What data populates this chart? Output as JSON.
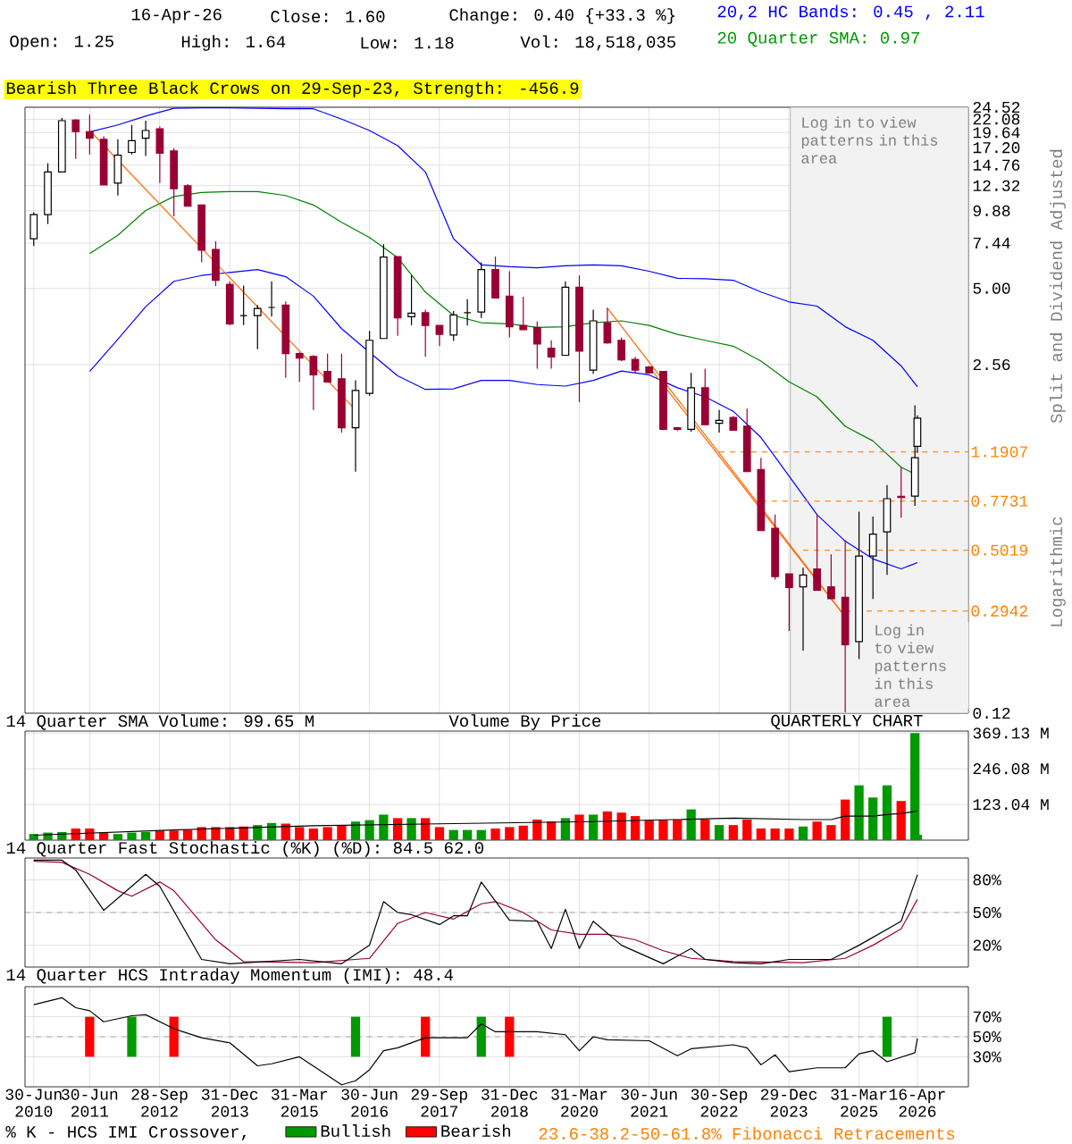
{
  "chart_data": [
    {
      "type": "candlestick",
      "title": "Bearish Three Black Crows on 29-Sep-23, Strength: -456.9",
      "ylabel": "Split and Dividend Adjusted",
      "log": true,
      "grid": true,
      "tick_labels": "y",
      "xlim": [
        "2010-05-04",
        "2027-03-15"
      ],
      "ylim": [
        0.12,
        24.52
      ],
      "xticks": [
        {
          "value": "2010-06-30",
          "label": null
        },
        {
          "value": "2011-06-30",
          "label": null
        },
        {
          "value": "2012-09-28",
          "label": null
        },
        {
          "value": "2013-12-31",
          "label": null
        },
        {
          "value": "2015-03-31",
          "label": null
        },
        {
          "value": "2016-06-30",
          "label": null
        },
        {
          "value": "2017-09-29",
          "label": null
        },
        {
          "value": "2018-12-31",
          "label": null
        },
        {
          "value": "2020-03-31",
          "label": null
        },
        {
          "value": "2021-06-30",
          "label": null
        },
        {
          "value": "2022-09-30",
          "label": null
        },
        {
          "value": "2023-12-29",
          "label": null
        },
        {
          "value": "2025-03-31",
          "label": null
        },
        {
          "value": "2026-04-16",
          "label": null
        }
      ],
      "yticks": [
        {
          "value": 24.52,
          "label": "24.52"
        },
        {
          "value": 22.08,
          "label": "22.08"
        },
        {
          "value": 19.64,
          "label": "19.64"
        },
        {
          "value": 17.2,
          "label": "17.20"
        },
        {
          "value": 14.76,
          "label": "14.76"
        },
        {
          "value": 12.32,
          "label": "12.32"
        },
        {
          "value": 9.88,
          "label": "9.88"
        },
        {
          "value": 7.44,
          "label": "7.44"
        },
        {
          "value": 5.0,
          "label": "5.00"
        },
        {
          "value": 2.56,
          "label": "2.56"
        },
        {
          "value": 0.12,
          "label": "0.12"
        }
      ],
      "x": [
        "2010-06-30",
        "2010-09-30",
        "2010-12-31",
        "2011-03-31",
        "2011-06-30",
        "2011-09-30",
        "2011-12-31",
        "2012-03-31",
        "2012-06-30",
        "2012-09-30",
        "2012-12-31",
        "2013-03-31",
        "2013-06-30",
        "2013-09-30",
        "2013-12-31",
        "2014-03-31",
        "2014-06-30",
        "2014-09-30",
        "2014-12-31",
        "2015-03-31",
        "2015-06-30",
        "2015-09-30",
        "2015-12-31",
        "2016-03-31",
        "2016-06-30",
        "2016-09-30",
        "2016-12-31",
        "2017-03-31",
        "2017-06-30",
        "2017-09-30",
        "2017-12-31",
        "2018-03-31",
        "2018-06-30",
        "2018-09-30",
        "2018-12-31",
        "2019-03-31",
        "2019-06-30",
        "2019-09-30",
        "2019-12-31",
        "2020-03-31",
        "2020-06-30",
        "2020-09-30",
        "2020-12-31",
        "2021-03-31",
        "2021-06-30",
        "2021-09-30",
        "2021-12-31",
        "2022-03-31",
        "2022-06-30",
        "2022-09-30",
        "2022-12-31",
        "2023-03-31",
        "2023-06-30",
        "2023-09-30",
        "2023-12-31",
        "2024-03-31",
        "2024-06-30",
        "2024-09-30",
        "2024-12-31",
        "2025-03-31",
        "2025-06-30",
        "2025-09-30",
        "2025-12-31",
        "2026-03-31",
        "2026-04-16"
      ],
      "ohlc": [
        [
          7.73,
          9.76,
          7.26,
          9.56
        ],
        [
          9.56,
          15.0,
          8.8,
          13.9
        ],
        [
          13.9,
          22.3,
          13.9,
          21.8
        ],
        [
          21.9,
          22.1,
          15.6,
          19.8
        ],
        [
          19.8,
          23.0,
          16.2,
          18.7
        ],
        [
          18.5,
          19.0,
          12.4,
          12.4
        ],
        [
          12.6,
          18.5,
          11.3,
          16.1
        ],
        [
          16.5,
          21.0,
          16.2,
          18.3
        ],
        [
          18.7,
          21.8,
          16.0,
          20.0
        ],
        [
          20.3,
          20.7,
          12.6,
          16.4
        ],
        [
          16.7,
          17.1,
          9.41,
          12.0
        ],
        [
          12.3,
          12.5,
          10.3,
          10.3
        ],
        [
          10.4,
          10.4,
          6.28,
          7.0
        ],
        [
          7.04,
          7.57,
          5.1,
          5.37
        ],
        [
          5.18,
          5.32,
          3.62,
          3.66
        ],
        [
          3.94,
          5.13,
          3.62,
          3.94
        ],
        [
          3.94,
          4.32,
          2.93,
          4.19
        ],
        [
          4.23,
          5.32,
          3.9,
          4.23
        ],
        [
          4.32,
          4.46,
          2.28,
          2.82
        ],
        [
          2.82,
          2.85,
          2.2,
          2.71
        ],
        [
          2.75,
          2.78,
          1.72,
          2.34
        ],
        [
          2.41,
          2.82,
          2.2,
          2.2
        ],
        [
          2.26,
          2.82,
          1.41,
          1.47
        ],
        [
          1.47,
          2.23,
          1.0,
          2.04
        ],
        [
          1.99,
          3.44,
          1.95,
          3.17
        ],
        [
          3.22,
          7.37,
          3.22,
          6.58
        ],
        [
          6.61,
          6.61,
          3.3,
          3.86
        ],
        [
          3.9,
          5.6,
          3.62,
          4.02
        ],
        [
          4.04,
          4.15,
          2.74,
          3.61
        ],
        [
          3.61,
          3.61,
          3.01,
          3.34
        ],
        [
          3.32,
          4.1,
          3.15,
          3.96
        ],
        [
          4.04,
          4.55,
          3.61,
          4.04
        ],
        [
          4.06,
          6.28,
          3.86,
          5.9
        ],
        [
          5.9,
          6.61,
          4.6,
          4.6
        ],
        [
          4.67,
          5.81,
          3.25,
          3.57
        ],
        [
          3.61,
          4.65,
          3.48,
          3.48
        ],
        [
          3.55,
          3.74,
          2.47,
          3.07
        ],
        [
          2.96,
          3.17,
          2.47,
          2.74
        ],
        [
          2.78,
          5.32,
          2.78,
          5.05
        ],
        [
          5.05,
          5.6,
          1.84,
          2.88
        ],
        [
          2.44,
          4.15,
          2.36,
          3.76
        ],
        [
          3.7,
          4.21,
          3.08,
          3.1
        ],
        [
          3.17,
          3.25,
          2.64,
          2.67
        ],
        [
          2.68,
          2.74,
          2.38,
          2.44
        ],
        [
          2.51,
          2.53,
          2.38,
          2.38
        ],
        [
          2.41,
          2.41,
          1.44,
          1.45
        ],
        [
          1.47,
          1.48,
          1.43,
          1.45
        ],
        [
          1.45,
          2.38,
          1.42,
          2.09
        ],
        [
          2.09,
          2.47,
          1.51,
          1.51
        ],
        [
          1.53,
          1.72,
          1.41,
          1.57
        ],
        [
          1.61,
          1.63,
          1.44,
          1.44
        ],
        [
          1.49,
          1.74,
          1.0,
          1.0
        ],
        [
          1.02,
          1.13,
          0.596,
          0.596
        ],
        [
          0.609,
          0.686,
          0.388,
          0.398
        ],
        [
          0.408,
          0.408,
          0.247,
          0.362
        ],
        [
          0.364,
          0.43,
          0.208,
          0.404
        ],
        [
          0.426,
          0.686,
          0.353,
          0.353
        ],
        [
          0.364,
          0.484,
          0.328,
          0.328
        ],
        [
          0.332,
          0.549,
          0.121,
          0.219
        ],
        [
          0.225,
          0.704,
          0.193,
          0.477
        ],
        [
          0.477,
          0.675,
          0.327,
          0.578
        ],
        [
          0.59,
          0.889,
          0.404,
          0.789
        ],
        [
          0.805,
          1.04,
          0.668,
          0.797
        ],
        [
          0.807,
          1.79,
          0.741,
          1.13
        ],
        [
          1.25,
          1.64,
          1.18,
          1.6
        ]
      ],
      "colors": [
        "#ffffff",
        "#ffffff",
        "#ffffff",
        "#990033",
        "#990033",
        "#990033",
        "#ffffff",
        "#ffffff",
        "#ffffff",
        "#990033",
        "#990033",
        "#990033",
        "#990033",
        "#990033",
        "#990033",
        "#000000",
        "#ffffff",
        "#000000",
        "#990033",
        "#990033",
        "#990033",
        "#990033",
        "#990033",
        "#ffffff",
        "#ffffff",
        "#ffffff",
        "#990033",
        "#ffffff",
        "#990033",
        "#990033",
        "#ffffff",
        "#000000",
        "#ffffff",
        "#990033",
        "#990033",
        "#990033",
        "#990033",
        "#990033",
        "#ffffff",
        "#990033",
        "#ffffff",
        "#990033",
        "#990033",
        "#990033",
        "#990033",
        "#990033",
        "#990033",
        "#ffffff",
        "#990033",
        "#ffffff",
        "#990033",
        "#990033",
        "#990033",
        "#990033",
        "#990033",
        "#ffffff",
        "#990033",
        "#990033",
        "#990033",
        "#ffffff",
        "#ffffff",
        "#ffffff",
        "#990033",
        "#ffffff",
        "#ffffff"
      ],
      "series": [
        {
          "type": "line",
          "color": "#0000ff",
          "x": [
            "2011-06-30",
            "2011-12-31",
            "2012-06-30",
            "2012-12-31",
            "2013-06-30",
            "2013-12-31",
            "2014-06-30",
            "2014-12-31",
            "2015-06-30",
            "2015-12-31",
            "2016-06-30",
            "2016-12-31",
            "2017-06-30",
            "2017-12-31",
            "2018-06-30",
            "2018-12-31",
            "2019-06-30",
            "2019-12-31",
            "2020-06-30",
            "2020-12-31",
            "2021-06-30",
            "2021-12-31",
            "2022-06-30",
            "2022-12-31",
            "2023-06-30",
            "2023-12-31",
            "2024-06-30",
            "2024-12-31",
            "2025-06-30",
            "2025-12-31",
            "2026-04-16"
          ],
          "values": [
            19.75,
            21.0,
            22.7,
            24.3,
            24.4,
            24.4,
            24.3,
            24.2,
            24.2,
            22.1,
            20.0,
            17.5,
            13.9,
            7.73,
            6.15,
            6.05,
            5.99,
            6.1,
            6.15,
            6.1,
            5.81,
            5.46,
            5.44,
            5.37,
            4.84,
            4.44,
            4.28,
            3.57,
            3.17,
            2.53,
            2.11
          ]
        },
        {
          "type": "line",
          "color": "#008000",
          "x": [
            "2011-06-30",
            "2011-12-31",
            "2012-06-30",
            "2012-12-31",
            "2013-06-30",
            "2013-12-31",
            "2014-06-30",
            "2014-12-31",
            "2015-06-30",
            "2015-12-31",
            "2016-06-30",
            "2016-12-31",
            "2017-06-30",
            "2017-12-31",
            "2018-06-30",
            "2018-12-31",
            "2019-06-30",
            "2019-12-31",
            "2020-06-30",
            "2020-12-31",
            "2021-06-30",
            "2021-12-31",
            "2022-06-30",
            "2022-12-31",
            "2023-06-30",
            "2023-12-31",
            "2024-06-30",
            "2024-12-31",
            "2025-06-30",
            "2025-12-31",
            "2026-04-16"
          ],
          "values": [
            6.79,
            7.97,
            9.91,
            11.2,
            11.6,
            11.7,
            11.7,
            11.3,
            10.4,
            8.93,
            7.81,
            6.55,
            4.84,
            3.94,
            3.7,
            3.66,
            3.55,
            3.57,
            3.7,
            3.76,
            3.61,
            3.34,
            3.17,
            3.01,
            2.64,
            2.2,
            1.93,
            1.49,
            1.31,
            1.04,
            0.97
          ]
        },
        {
          "type": "line",
          "color": "#0000ff",
          "x": [
            "2011-06-30",
            "2011-12-31",
            "2012-06-30",
            "2012-12-31",
            "2013-06-30",
            "2013-12-31",
            "2014-06-30",
            "2014-12-31",
            "2015-06-30",
            "2015-12-31",
            "2016-06-30",
            "2016-12-31",
            "2017-06-30",
            "2017-12-31",
            "2018-06-30",
            "2018-12-31",
            "2019-06-30",
            "2019-12-31",
            "2020-06-30",
            "2020-12-31",
            "2021-06-30",
            "2021-12-31",
            "2022-06-30",
            "2022-12-31",
            "2023-06-30",
            "2023-12-31",
            "2024-06-30",
            "2024-12-31",
            "2025-06-30",
            "2025-12-31",
            "2026-04-16"
          ],
          "values": [
            2.41,
            3.2,
            4.26,
            5.32,
            5.6,
            5.75,
            5.9,
            5.54,
            4.67,
            3.51,
            2.85,
            2.32,
            2.06,
            2.07,
            2.23,
            2.23,
            2.15,
            2.12,
            2.23,
            2.42,
            2.34,
            2.09,
            1.93,
            1.7,
            1.35,
            0.961,
            0.686,
            0.543,
            0.465,
            0.426,
            0.45
          ]
        },
        {
          "type": "line",
          "color": "#ff6600",
          "x": [
            "2011-06-30",
            "2016-03-31"
          ],
          "values": [
            20.0,
            1.72
          ]
        },
        {
          "type": "line",
          "color": "#ff6600",
          "x": [
            "2020-09-30",
            "2024-12-31"
          ],
          "values": [
            4.21,
            0.28
          ]
        },
        {
          "type": "line",
          "color": "#ff6600",
          "x": [
            "2021-06-30",
            "2024-12-31"
          ],
          "values": [
            2.51,
            0.28
          ]
        },
        {
          "type": "line",
          "color": "#ff8c1a",
          "line_style": "dashed",
          "x": [
            "2022-09-30",
            "2027-03-15"
          ],
          "values": [
            1.1907,
            1.1907
          ]
        },
        {
          "type": "line",
          "color": "#ff8c1a",
          "line_style": "dashed",
          "x": [
            "2023-06-30",
            "2027-03-15"
          ],
          "values": [
            0.7731,
            0.7731
          ]
        },
        {
          "type": "line",
          "color": "#ff8c1a",
          "line_style": "dashed",
          "x": [
            "2024-03-31",
            "2027-03-15"
          ],
          "values": [
            0.5019,
            0.5019
          ]
        },
        {
          "type": "line",
          "color": "#ff8c1a",
          "line_style": "dashed",
          "x": [
            "2024-12-31",
            "2027-03-15"
          ],
          "values": [
            0.2942,
            0.2942
          ]
        }
      ],
      "bands": [
        {
          "axis": "x",
          "from": "2024-01-08",
          "to": "2027-03-15",
          "color": "#f2f2f2"
        }
      ],
      "annotations": [
        "16-Apr-26",
        "Close: 1.60",
        "Change: 0.40 {+33.3 %}",
        "Open: 1.25",
        "High: 1.64",
        "Low: 1.18",
        "Vol: 18,518,035",
        "20,2 HC Bands: 0.45 , 2.11",
        "20 Quarter SMA: 0.97",
        "Log in to view patterns in this area",
        "Log in to view patterns in this area",
        "Logarithmic",
        {
          "text": "1.1907",
          "x": "2027-03-15",
          "y": 1.1907
        },
        {
          "text": "0.7731",
          "x": "2027-03-15",
          "y": 0.7731
        },
        {
          "text": "0.5019",
          "x": "2027-03-15",
          "y": 0.5019
        },
        {
          "text": "0.2942",
          "x": "2027-03-15",
          "y": 0.2942
        }
      ]
    },
    {
      "type": "bar",
      "title": "14 Quarter SMA Volume: 99.65 M",
      "grid": true,
      "tick_labels": "y",
      "xlim": [
        "2010-05-04",
        "2027-03-15"
      ],
      "ylim": [
        0,
        376
      ],
      "yticks": [
        {
          "value": 123.04,
          "label": "123.04 M"
        },
        {
          "value": 246.08,
          "label": "246.08 M"
        },
        {
          "value": 369.13,
          "label": "369.13 M"
        }
      ],
      "xticks": [
        {
          "value": "2010-06-30",
          "label": null
        },
        {
          "value": "2011-06-30",
          "label": null
        },
        {
          "value": "2012-09-28",
          "label": null
        },
        {
          "value": "2013-12-31",
          "label": null
        },
        {
          "value": "2015-03-31",
          "label": null
        },
        {
          "value": "2016-06-30",
          "label": null
        },
        {
          "value": "2017-09-29",
          "label": null
        },
        {
          "value": "2018-12-31",
          "label": null
        },
        {
          "value": "2020-03-31",
          "label": null
        },
        {
          "value": "2021-06-30",
          "label": null
        },
        {
          "value": "2022-09-30",
          "label": null
        },
        {
          "value": "2023-12-29",
          "label": null
        },
        {
          "value": "2025-03-31",
          "label": null
        },
        {
          "value": "2026-04-16",
          "label": null
        }
      ],
      "x": [
        "2010-06-30",
        "2010-09-30",
        "2010-12-31",
        "2011-03-31",
        "2011-06-30",
        "2011-09-30",
        "2011-12-31",
        "2012-03-31",
        "2012-06-30",
        "2012-09-30",
        "2012-12-31",
        "2013-03-31",
        "2013-06-30",
        "2013-09-30",
        "2013-12-31",
        "2014-03-31",
        "2014-06-30",
        "2014-09-30",
        "2014-12-31",
        "2015-03-31",
        "2015-06-30",
        "2015-09-30",
        "2015-12-31",
        "2016-03-31",
        "2016-06-30",
        "2016-09-30",
        "2016-12-31",
        "2017-03-31",
        "2017-06-30",
        "2017-09-30",
        "2017-12-31",
        "2018-03-31",
        "2018-06-30",
        "2018-09-30",
        "2018-12-31",
        "2019-03-31",
        "2019-06-30",
        "2019-09-30",
        "2019-12-31",
        "2020-03-31",
        "2020-06-30",
        "2020-09-30",
        "2020-12-31",
        "2021-03-31",
        "2021-06-30",
        "2021-09-30",
        "2021-12-31",
        "2022-03-31",
        "2022-06-30",
        "2022-09-30",
        "2022-12-31",
        "2023-03-31",
        "2023-06-30",
        "2023-09-30",
        "2023-12-31",
        "2024-03-31",
        "2024-06-30",
        "2024-09-30",
        "2024-12-31",
        "2025-03-31",
        "2025-06-30",
        "2025-09-30",
        "2025-12-31",
        "2026-03-31",
        "2026-04-16"
      ],
      "series": [
        {
          "type": "bar",
          "values": [
            21,
            26,
            28,
            40,
            40,
            26,
            21,
            26,
            28,
            33,
            33,
            35,
            45,
            45,
            45,
            47,
            52,
            59,
            57,
            45,
            40,
            45,
            50,
            64,
            69,
            88,
            76,
            76,
            76,
            45,
            35,
            35,
            35,
            40,
            45,
            50,
            71,
            64,
            76,
            88,
            88,
            99,
            95,
            83,
            69,
            69,
            71,
            106,
            71,
            52,
            52,
            71,
            40,
            40,
            40,
            47,
            64,
            52,
            140,
            189,
            147,
            189,
            135,
            369,
            18.5
          ],
          "colors": [
            "#009900",
            "#009900",
            "#009900",
            "#ff0000",
            "#ff0000",
            "#ff0000",
            "#009900",
            "#009900",
            "#009900",
            "#ff0000",
            "#ff0000",
            "#ff0000",
            "#ff0000",
            "#ff0000",
            "#ff0000",
            "#ff0000",
            "#009900",
            "#009900",
            "#ff0000",
            "#ff0000",
            "#ff0000",
            "#ff0000",
            "#ff0000",
            "#009900",
            "#009900",
            "#009900",
            "#ff0000",
            "#009900",
            "#ff0000",
            "#ff0000",
            "#009900",
            "#009900",
            "#009900",
            "#ff0000",
            "#ff0000",
            "#ff0000",
            "#ff0000",
            "#ff0000",
            "#009900",
            "#ff0000",
            "#009900",
            "#ff0000",
            "#ff0000",
            "#ff0000",
            "#ff0000",
            "#ff0000",
            "#ff0000",
            "#009900",
            "#ff0000",
            "#009900",
            "#ff0000",
            "#ff0000",
            "#ff0000",
            "#ff0000",
            "#ff0000",
            "#009900",
            "#ff0000",
            "#ff0000",
            "#ff0000",
            "#009900",
            "#009900",
            "#009900",
            "#ff0000",
            "#009900",
            "#009900"
          ]
        },
        {
          "type": "line",
          "color": "#000000",
          "x": [
            "2010-06-30",
            "2012-12-31",
            "2015-06-30",
            "2017-12-31",
            "2020-06-30",
            "2022-12-31",
            "2024-03-31",
            "2024-09-30",
            "2024-12-31",
            "2025-06-30",
            "2025-09-30",
            "2025-12-31",
            "2026-03-31",
            "2026-04-16"
          ],
          "values": [
            17,
            35,
            50,
            57,
            64,
            76,
            71,
            71,
            83,
            83,
            88,
            92,
            99,
            99.65
          ]
        }
      ],
      "annotations": [
        "Volume By Price",
        "QUARTERLY CHART"
      ]
    },
    {
      "type": "line",
      "title": "14 Quarter Fast Stochastic (%K) (%D): 84.5  62.0",
      "grid": true,
      "tick_labels": "y",
      "xlim": [
        "2010-05-04",
        "2027-03-15"
      ],
      "ylim": [
        0,
        100
      ],
      "yticks": [
        {
          "value": 20,
          "label": "20%"
        },
        {
          "value": 50,
          "label": "50%"
        },
        {
          "value": 80,
          "label": "80%"
        }
      ],
      "xticks": [
        {
          "value": "2010-06-30",
          "label": null
        },
        {
          "value": "2011-06-30",
          "label": null
        },
        {
          "value": "2012-09-28",
          "label": null
        },
        {
          "value": "2013-12-31",
          "label": null
        },
        {
          "value": "2015-03-31",
          "label": null
        },
        {
          "value": "2016-06-30",
          "label": null
        },
        {
          "value": "2017-09-29",
          "label": null
        },
        {
          "value": "2018-12-31",
          "label": null
        },
        {
          "value": "2020-03-31",
          "label": null
        },
        {
          "value": "2021-06-30",
          "label": null
        },
        {
          "value": "2022-09-30",
          "label": null
        },
        {
          "value": "2023-12-29",
          "label": null
        },
        {
          "value": "2025-03-31",
          "label": null
        },
        {
          "value": "2026-04-16",
          "label": null
        }
      ],
      "ref_lines": [
        {
          "axis": "y",
          "value": 50,
          "line_style": "dashed",
          "color": "#999999"
        }
      ],
      "series": [
        {
          "type": "line",
          "color": "#990033",
          "x": [
            "2010-06-30",
            "2010-12-31",
            "2011-06-30",
            "2011-12-31",
            "2012-03-31",
            "2012-09-30",
            "2012-12-31",
            "2013-09-30",
            "2014-03-31",
            "2015-06-30",
            "2016-06-30",
            "2016-12-31",
            "2017-06-30",
            "2017-12-31",
            "2018-06-30",
            "2018-09-30",
            "2019-03-31",
            "2019-09-30",
            "2020-03-31",
            "2020-09-30",
            "2021-03-31",
            "2021-09-30",
            "2022-03-31",
            "2022-12-31",
            "2024-03-31",
            "2024-12-31",
            "2025-06-30",
            "2025-12-31",
            "2026-04-16"
          ],
          "values": [
            97,
            96,
            85,
            70,
            65,
            78,
            70,
            25,
            5,
            4,
            8,
            40,
            50,
            44,
            58,
            60,
            50,
            34,
            30,
            30,
            25,
            15,
            8,
            5,
            4,
            8,
            20,
            35,
            62.0
          ]
        },
        {
          "type": "line",
          "color": "#000000",
          "x": [
            "2010-06-30",
            "2010-12-31",
            "2011-03-31",
            "2011-09-30",
            "2012-06-30",
            "2012-09-30",
            "2013-06-30",
            "2013-12-31",
            "2015-03-31",
            "2015-12-31",
            "2016-06-30",
            "2016-09-30",
            "2016-12-31",
            "2017-03-31",
            "2017-09-30",
            "2017-12-31",
            "2018-03-31",
            "2018-06-30",
            "2018-12-31",
            "2019-06-30",
            "2019-09-30",
            "2019-12-31",
            "2020-03-31",
            "2020-06-30",
            "2020-12-31",
            "2021-09-30",
            "2022-03-31",
            "2022-06-30",
            "2022-12-31",
            "2023-06-30",
            "2023-12-31",
            "2024-09-30",
            "2025-03-31",
            "2025-12-31",
            "2026-04-16"
          ],
          "values": [
            98,
            98,
            89,
            52,
            85,
            74,
            7,
            3,
            7,
            3,
            20,
            60,
            50,
            48,
            39,
            47,
            47,
            78,
            43,
            42,
            17,
            53,
            17,
            42,
            20,
            3,
            17,
            7,
            4,
            3,
            7,
            7,
            20,
            42,
            84.5
          ]
        }
      ]
    },
    {
      "type": "line",
      "title": "14 Quarter HCS Intraday Momentum (IMI): 48.4",
      "grid": true,
      "legend": "bottom",
      "legend_title": "% K - HCS IMI Crossover,",
      "xlim": [
        "2010-05-04",
        "2027-03-15"
      ],
      "ylim": [
        0,
        100
      ],
      "yticks": [
        {
          "value": 30,
          "label": "30%"
        },
        {
          "value": 50,
          "label": "50%"
        },
        {
          "value": 70,
          "label": "70%"
        }
      ],
      "xticks": [
        {
          "value": "2010-06-30",
          "label": "30-Jun 2010"
        },
        {
          "value": "2011-06-30",
          "label": "30-Jun 2011"
        },
        {
          "value": "2012-09-28",
          "label": "28-Sep 2012"
        },
        {
          "value": "2013-12-31",
          "label": "31-Dec 2013"
        },
        {
          "value": "2015-03-31",
          "label": "31-Mar 2015"
        },
        {
          "value": "2016-06-30",
          "label": "30-Jun 2016"
        },
        {
          "value": "2017-09-29",
          "label": "29-Sep 2017"
        },
        {
          "value": "2018-12-31",
          "label": "31-Dec 2018"
        },
        {
          "value": "2020-03-31",
          "label": "31-Mar 2020"
        },
        {
          "value": "2021-06-30",
          "label": "30-Jun 2021"
        },
        {
          "value": "2022-09-30",
          "label": "30-Sep 2022"
        },
        {
          "value": "2023-12-29",
          "label": "29-Dec 2023"
        },
        {
          "value": "2025-03-31",
          "label": "31-Mar 2025"
        },
        {
          "value": "2026-04-16",
          "label": "16-Apr 2026"
        }
      ],
      "ref_lines": [
        {
          "axis": "y",
          "value": 50,
          "line_style": "dashed",
          "color": "#999999"
        }
      ],
      "series": [
        {
          "type": "bar",
          "name": "Bullish",
          "color": "#009900",
          "x": [
            "2012-03-31",
            "2016-03-31",
            "2018-06-30",
            "2025-09-30"
          ],
          "base": [
            30,
            30,
            30,
            30
          ],
          "values": [
            40,
            40,
            40,
            40
          ]
        },
        {
          "type": "bar",
          "name": "Bearish",
          "color": "#ff0000",
          "x": [
            "2011-06-30",
            "2012-12-31",
            "2017-06-30",
            "2018-12-31"
          ],
          "base": [
            30,
            30,
            30,
            30
          ],
          "values": [
            40,
            40,
            40,
            40
          ]
        },
        {
          "type": "line",
          "color": "#000000",
          "x": [
            "2010-06-30",
            "2010-12-31",
            "2011-03-31",
            "2011-06-30",
            "2011-09-30",
            "2012-03-31",
            "2012-06-30",
            "2012-12-31",
            "2013-06-30",
            "2013-12-31",
            "2014-06-30",
            "2014-09-30",
            "2015-03-31",
            "2015-12-31",
            "2016-03-31",
            "2016-06-30",
            "2016-09-30",
            "2016-12-31",
            "2017-06-30",
            "2018-03-31",
            "2018-06-30",
            "2018-09-30",
            "2019-06-30",
            "2019-12-31",
            "2020-03-31",
            "2020-06-30",
            "2020-09-30",
            "2021-06-30",
            "2021-12-31",
            "2022-03-31",
            "2022-12-31",
            "2023-03-31",
            "2023-06-30",
            "2023-09-30",
            "2023-12-31",
            "2024-06-30",
            "2024-12-31",
            "2025-03-31",
            "2025-06-30",
            "2025-09-30",
            "2026-03-31",
            "2026-04-16"
          ],
          "values": [
            82,
            89,
            79,
            76,
            65,
            71,
            72,
            58,
            49,
            44,
            21,
            23,
            30,
            2,
            6,
            17,
            36,
            39,
            49,
            49,
            63,
            55,
            55,
            52,
            36,
            50,
            47,
            46,
            31,
            38,
            42,
            39,
            22,
            32,
            15,
            19,
            19,
            33,
            36,
            25,
            34,
            48.4
          ]
        }
      ],
      "annotations": [
        "23.6-38.2-50-61.8% Fibonacci Retracements"
      ]
    }
  ]
}
